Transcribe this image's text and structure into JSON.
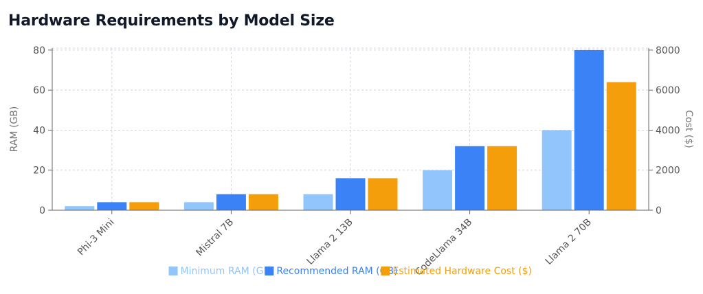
{
  "header": {
    "title": "Hardware Requirements by Model Size"
  },
  "chart_data": {
    "type": "bar",
    "categories": [
      "Phi-3 Mini",
      "Mistral 7B",
      "Llama 2 13B",
      "CodeLlama 34B",
      "Llama 2 70B"
    ],
    "series": [
      {
        "name": "Minimum RAM (GB)",
        "axis": "left",
        "color": "#93c5fd",
        "values": [
          2,
          4,
          8,
          20,
          40
        ]
      },
      {
        "name": "Recommended RAM (GB)",
        "axis": "left",
        "color": "#3b82f6",
        "values": [
          4,
          8,
          16,
          32,
          80
        ]
      },
      {
        "name": "Estimated Hardware Cost ($)",
        "axis": "right",
        "color": "#f59e0b",
        "values": [
          400,
          800,
          1600,
          3200,
          6400
        ]
      }
    ],
    "y_left": {
      "label": "RAM (GB)",
      "range": [
        0,
        81
      ],
      "ticks": [
        0,
        20,
        40,
        60,
        80
      ]
    },
    "y_right": {
      "label": "Cost ($)",
      "range": [
        0,
        8100
      ],
      "ticks": [
        0,
        2000,
        4000,
        6000,
        8000
      ]
    },
    "grid": true,
    "legend_position": "bottom"
  }
}
